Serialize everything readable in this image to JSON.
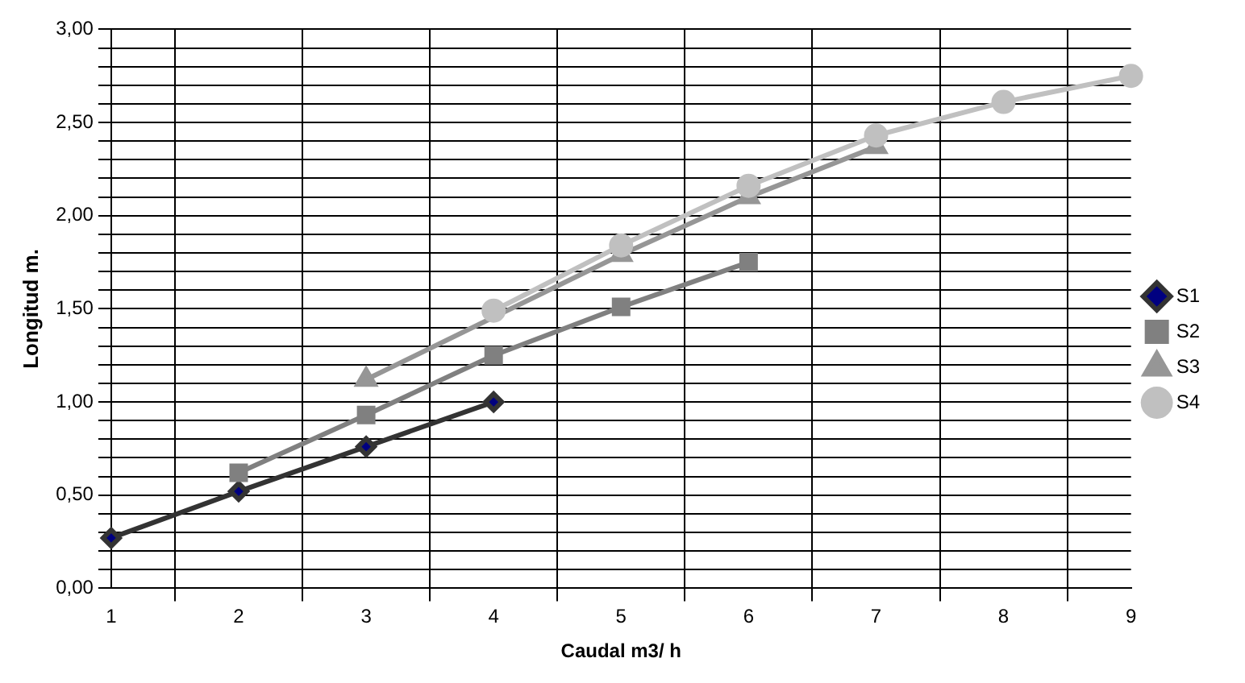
{
  "chart_data": {
    "type": "line",
    "xlabel": "Caudal m3/ h",
    "ylabel": "Longitud m.",
    "categories": [
      "1",
      "2",
      "3",
      "4",
      "5",
      "6",
      "7",
      "8",
      "9"
    ],
    "series": [
      {
        "name": "S1",
        "color": "#333333",
        "marker": "diamond",
        "values": [
          0.27,
          0.52,
          0.76,
          1.0,
          null,
          null,
          null,
          null,
          null
        ]
      },
      {
        "name": "S2",
        "color": "#808080",
        "marker": "square",
        "values": [
          null,
          0.62,
          0.93,
          1.25,
          1.51,
          1.75,
          null,
          null,
          null
        ]
      },
      {
        "name": "S3",
        "color": "#969696",
        "marker": "triangle",
        "values": [
          null,
          null,
          1.12,
          null,
          1.79,
          2.1,
          2.37,
          null,
          null
        ]
      },
      {
        "name": "S4",
        "color": "#c0c0c0",
        "marker": "circle",
        "values": [
          null,
          null,
          null,
          1.49,
          1.84,
          2.16,
          2.43,
          2.61,
          2.75
        ]
      }
    ],
    "ylim": [
      0,
      3
    ],
    "yticks": [
      {
        "value": 0,
        "label": "0,00"
      },
      {
        "value": 0.1,
        "label": null
      },
      {
        "value": 0.2,
        "label": null
      },
      {
        "value": 0.3,
        "label": null
      },
      {
        "value": 0.4,
        "label": null
      },
      {
        "value": 0.5,
        "label": "0,50"
      },
      {
        "value": 0.6,
        "label": null
      },
      {
        "value": 0.7,
        "label": null
      },
      {
        "value": 0.8,
        "label": null
      },
      {
        "value": 0.9,
        "label": null
      },
      {
        "value": 1,
        "label": "1,00"
      },
      {
        "value": 1.1,
        "label": null
      },
      {
        "value": 1.2,
        "label": null
      },
      {
        "value": 1.3,
        "label": null
      },
      {
        "value": 1.4,
        "label": null
      },
      {
        "value": 1.5,
        "label": "1,50"
      },
      {
        "value": 1.6,
        "label": null
      },
      {
        "value": 1.7,
        "label": null
      },
      {
        "value": 1.8,
        "label": null
      },
      {
        "value": 1.9,
        "label": null
      },
      {
        "value": 2,
        "label": "2,00"
      },
      {
        "value": 2.1,
        "label": null
      },
      {
        "value": 2.2,
        "label": null
      },
      {
        "value": 2.3,
        "label": null
      },
      {
        "value": 2.4,
        "label": null
      },
      {
        "value": 2.5,
        "label": "2,50"
      },
      {
        "value": 2.6,
        "label": null
      },
      {
        "value": 2.7,
        "label": null
      },
      {
        "value": 2.8,
        "label": null
      },
      {
        "value": 2.9,
        "label": null
      },
      {
        "value": 3,
        "label": "3,00"
      }
    ],
    "grid": true,
    "legend": "right"
  }
}
